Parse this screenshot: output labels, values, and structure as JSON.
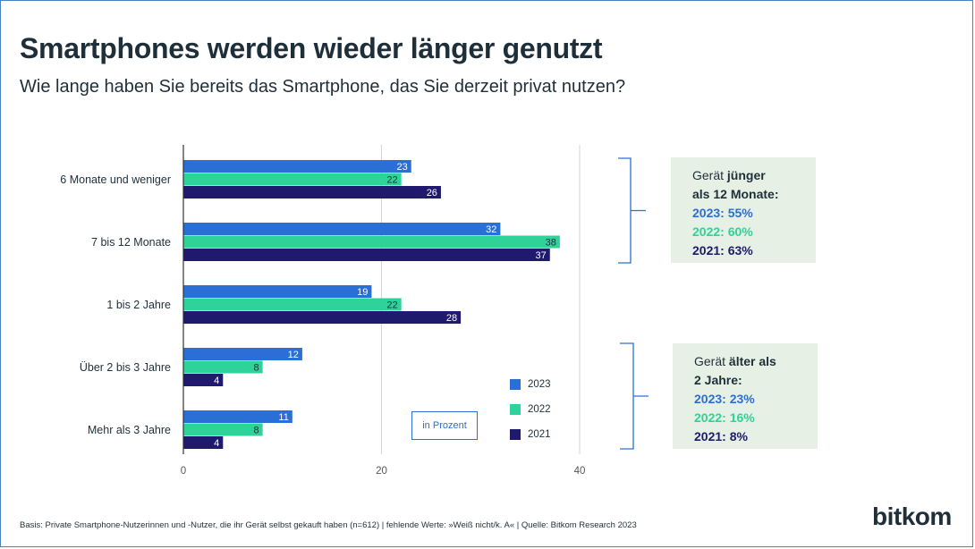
{
  "title": "Smartphones werden wieder länger genutzt",
  "subtitle": "Wie lange haben Sie bereits das Smartphone, das Sie derzeit privat nutzen?",
  "colors": {
    "series_2023": "#2a6fd6",
    "series_2022": "#2ed39a",
    "series_2021": "#1f1a6e",
    "note_bg": "#e6f0e4",
    "bracket": "#2a6fd6"
  },
  "chart_data": {
    "type": "bar",
    "orientation": "horizontal",
    "categories": [
      "6 Monate und weniger",
      "7 bis 12 Monate",
      "1 bis 2 Jahre",
      "Über 2 bis 3 Jahre",
      "Mehr als 3 Jahre"
    ],
    "series": [
      {
        "name": "2023",
        "values": [
          23,
          32,
          19,
          12,
          11
        ]
      },
      {
        "name": "2022",
        "values": [
          22,
          38,
          22,
          8,
          8
        ]
      },
      {
        "name": "2021",
        "values": [
          26,
          37,
          28,
          4,
          4
        ]
      }
    ],
    "xlim": [
      0,
      40
    ],
    "xticks": [
      0,
      20,
      40
    ],
    "grid": true,
    "legend_placement": "bottom-right"
  },
  "unit_label": "in Prozent",
  "note_younger": {
    "prefix": "Gerät ",
    "bold1": "jünger",
    "bold2": "als 12 Monate:",
    "line_2023": "2023: 55%",
    "line_2022": "2022: 60%",
    "line_2021": "2021: 63%"
  },
  "note_older": {
    "prefix": "Gerät ",
    "bold1": "älter als",
    "bold2": "2 Jahre:",
    "line_2023": "2023: 23%",
    "line_2022": "2022: 16%",
    "line_2021": "2021: 8%"
  },
  "footer": "Basis: Private Smartphone-Nutzerinnen und -Nutzer, die ihr Gerät selbst gekauft haben (n=612) | fehlende Werte: »Weiß nicht/k. A« | Quelle: Bitkom Research 2023",
  "logo_text": "bitkom"
}
